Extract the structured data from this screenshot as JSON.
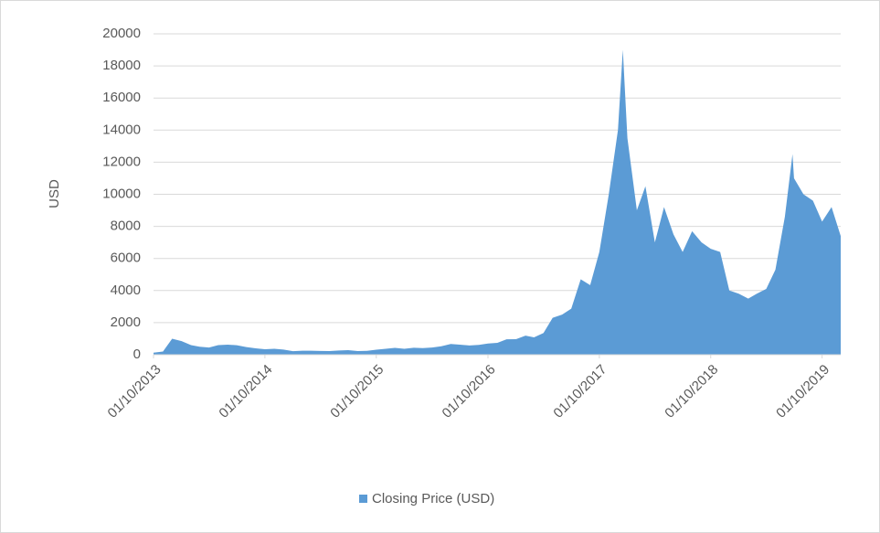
{
  "chart_data": {
    "type": "area",
    "y_label": "USD",
    "x": [
      "01/10/2013",
      "01/11/2013",
      "01/12/2013",
      "01/01/2014",
      "01/02/2014",
      "01/03/2014",
      "01/04/2014",
      "01/05/2014",
      "01/06/2014",
      "01/07/2014",
      "01/08/2014",
      "01/09/2014",
      "01/10/2014",
      "01/11/2014",
      "01/12/2014",
      "01/01/2015",
      "01/02/2015",
      "01/03/2015",
      "01/04/2015",
      "01/05/2015",
      "01/06/2015",
      "01/07/2015",
      "01/08/2015",
      "01/09/2015",
      "01/10/2015",
      "01/11/2015",
      "01/12/2015",
      "01/01/2016",
      "01/02/2016",
      "01/03/2016",
      "01/04/2016",
      "01/05/2016",
      "01/06/2016",
      "01/07/2016",
      "01/08/2016",
      "01/09/2016",
      "01/10/2016",
      "01/11/2016",
      "01/12/2016",
      "01/01/2017",
      "01/02/2017",
      "01/03/2017",
      "01/04/2017",
      "01/05/2017",
      "01/06/2017",
      "01/07/2017",
      "01/08/2017",
      "01/09/2017",
      "01/10/2017",
      "01/11/2017",
      "01/12/2017",
      "17/12/2017",
      "01/01/2018",
      "01/02/2018",
      "01/03/2018",
      "01/04/2018",
      "01/05/2018",
      "01/06/2018",
      "01/07/2018",
      "01/08/2018",
      "01/09/2018",
      "01/10/2018",
      "01/11/2018",
      "01/12/2018",
      "01/01/2019",
      "01/02/2019",
      "01/03/2019",
      "01/04/2019",
      "01/05/2019",
      "01/06/2019",
      "26/06/2019",
      "01/07/2019",
      "01/08/2019",
      "01/09/2019",
      "01/10/2019",
      "01/11/2019",
      "01/12/2019"
    ],
    "series": [
      {
        "name": "Closing Price (USD)",
        "color": "#5b9bd5",
        "values": [
          125,
          200,
          1000,
          850,
          600,
          500,
          450,
          600,
          630,
          590,
          480,
          400,
          340,
          370,
          320,
          220,
          250,
          250,
          235,
          230,
          260,
          285,
          230,
          240,
          310,
          370,
          430,
          370,
          435,
          415,
          450,
          530,
          670,
          625,
          575,
          610,
          700,
          740,
          960,
          970,
          1190,
          1080,
          1350,
          2300,
          2500,
          2870,
          4700,
          4340,
          6400,
          10000,
          14000,
          19000,
          13500,
          9000,
          10500,
          7000,
          9200,
          7500,
          6400,
          7700,
          7000,
          6600,
          6400,
          4000,
          3800,
          3500,
          3800,
          4100,
          5300,
          8600,
          12500,
          11000,
          10000,
          9600,
          8300,
          9200,
          7400
        ]
      }
    ],
    "xticks": [
      "01/10/2013",
      "01/10/2014",
      "01/10/2015",
      "01/10/2016",
      "01/10/2017",
      "01/10/2018",
      "01/10/2019"
    ],
    "ylim": [
      0,
      20000
    ],
    "yticks": [
      0,
      2000,
      4000,
      6000,
      8000,
      10000,
      12000,
      14000,
      16000,
      18000,
      20000
    ],
    "grid": true,
    "legend": "bottom"
  }
}
